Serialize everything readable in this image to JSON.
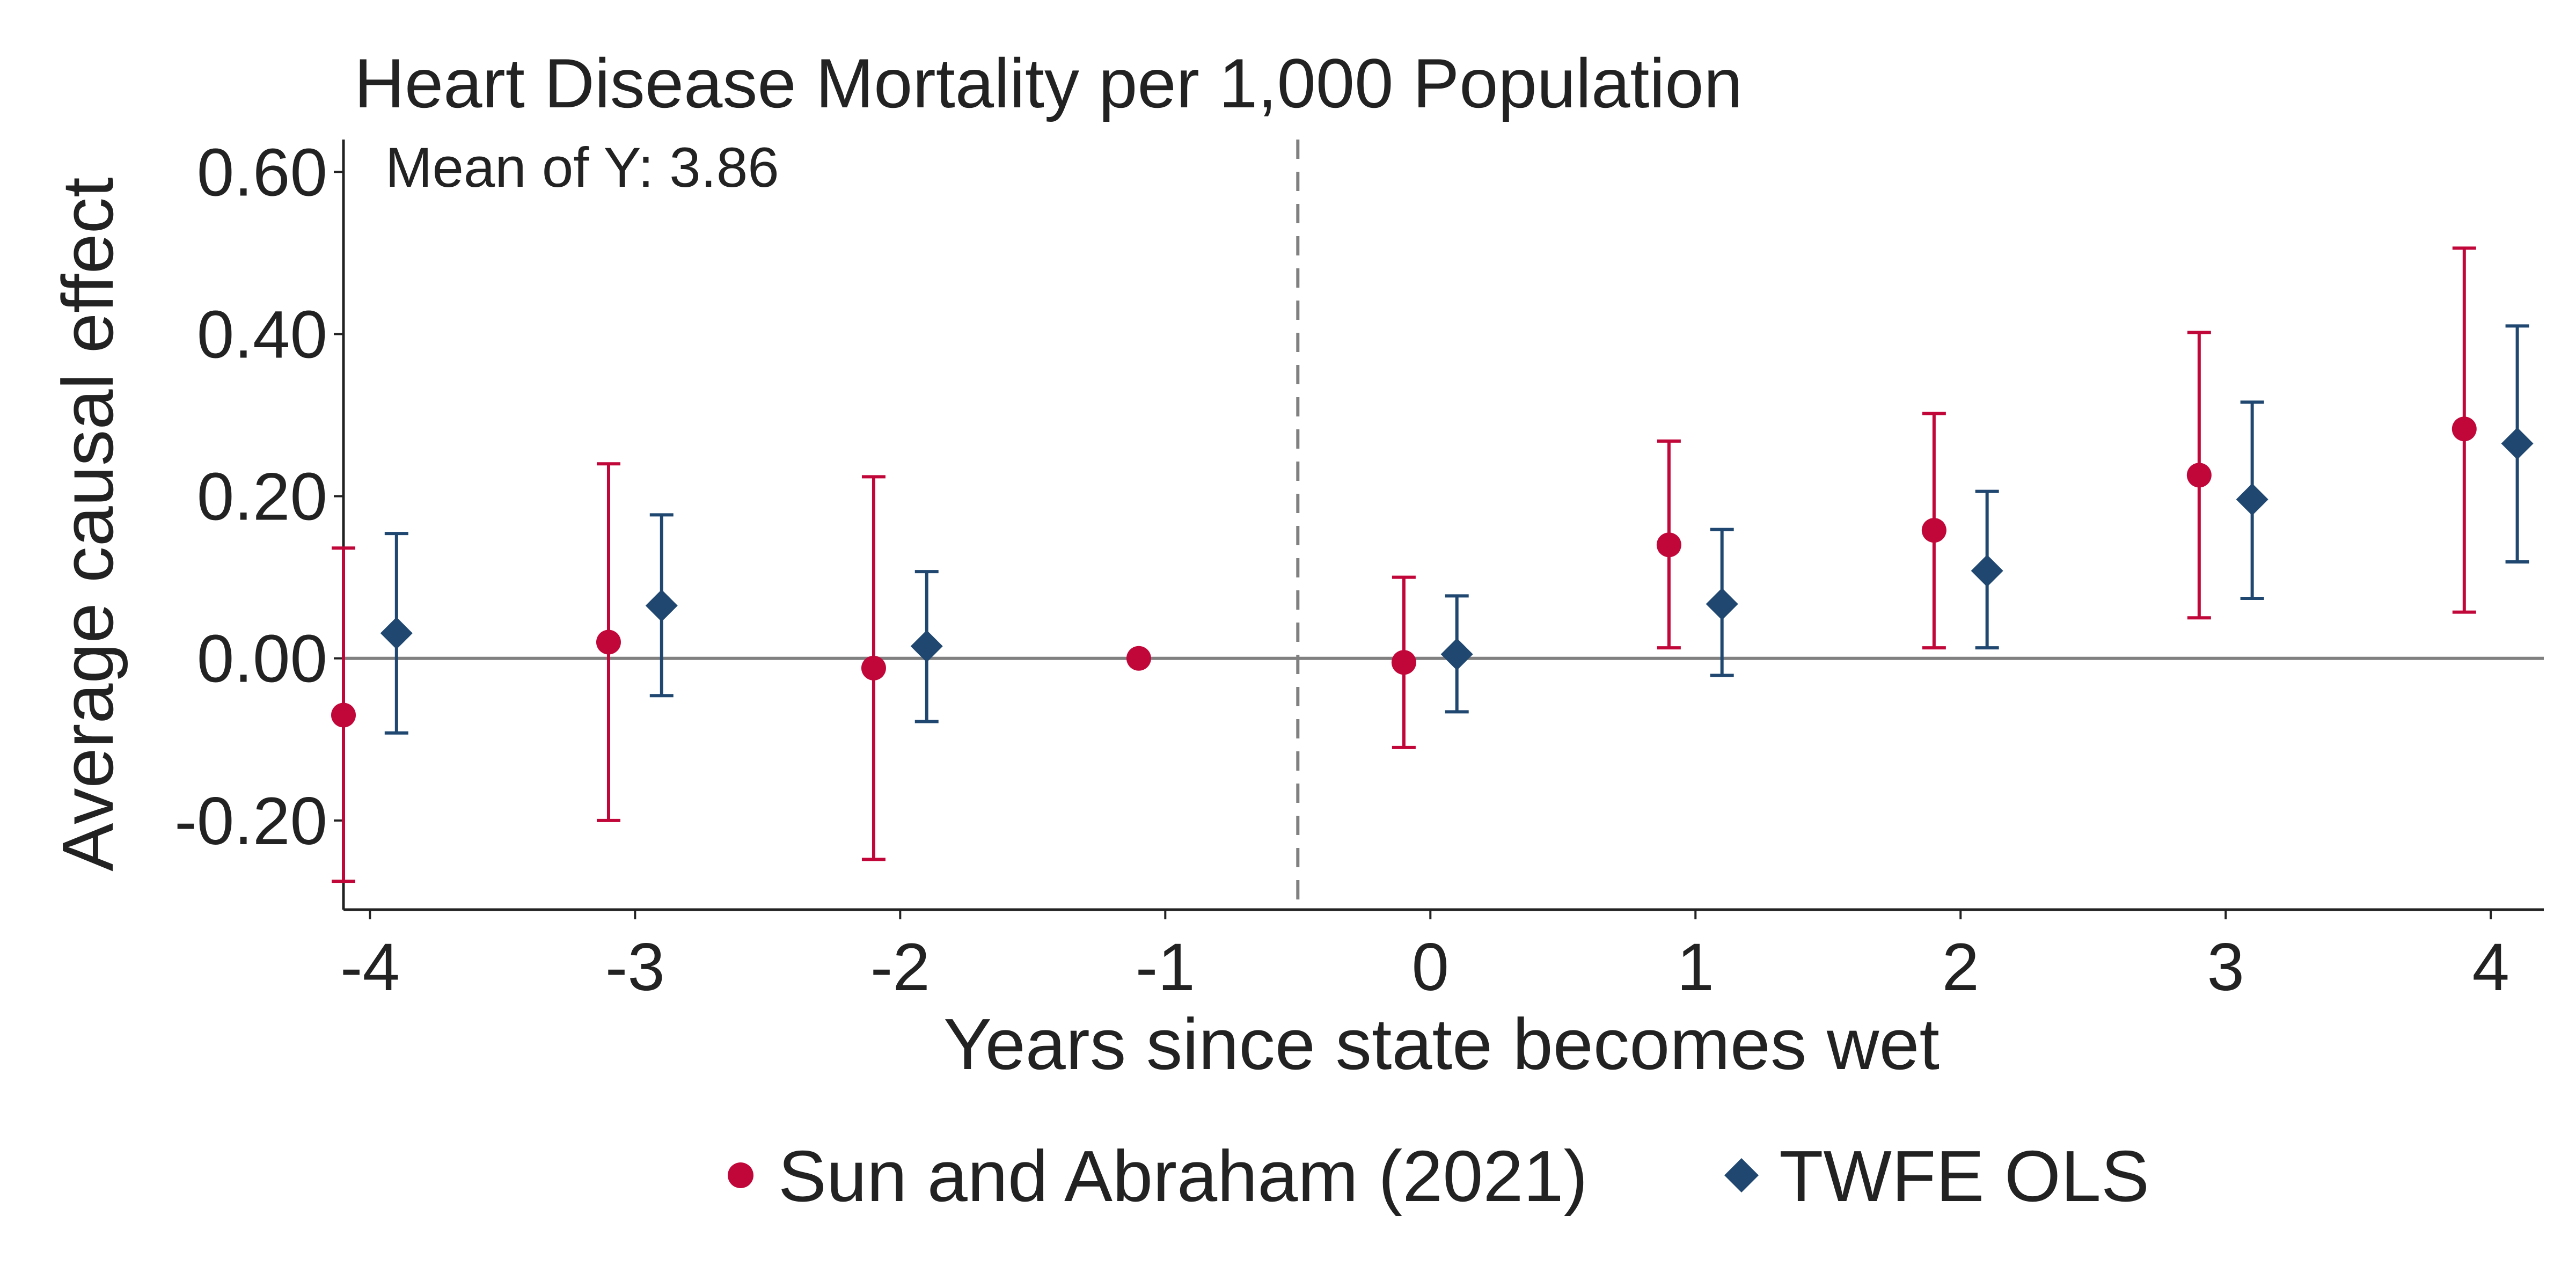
{
  "chart_data": {
    "type": "scatter",
    "title": "Heart Disease Mortality per 1,000 Population",
    "annotation": "Mean of Y: 3.86",
    "xlabel": "Years since state becomes wet",
    "ylabel": "Average causal effect",
    "x_ticks": [
      "-4",
      "-3",
      "-2",
      "-1",
      "0",
      "1",
      "2",
      "3",
      "4"
    ],
    "y_ticks": [
      "0.60",
      "0.40",
      "0.20",
      "0.00",
      "-0.20"
    ],
    "y_tick_values": [
      0.6,
      0.4,
      0.2,
      0.0,
      -0.2
    ],
    "xlim": [
      -4.1,
      4.2
    ],
    "ylim": [
      -0.31,
      0.64
    ],
    "event_line_x": -0.5,
    "zero_line": 0,
    "legend_position": "bottom",
    "series": [
      {
        "name": "Sun and Abraham (2021)",
        "marker": "circle",
        "color": "#C1073A",
        "x": [
          -4,
          -3,
          -2,
          -1,
          0,
          1,
          2,
          3,
          4
        ],
        "y": [
          -0.07,
          0.02,
          -0.012,
          0.0,
          -0.005,
          0.14,
          0.158,
          0.226,
          0.283
        ],
        "ci_low": [
          -0.275,
          -0.2,
          -0.248,
          null,
          -0.11,
          0.013,
          0.013,
          0.05,
          0.057
        ],
        "ci_high": [
          0.136,
          0.24,
          0.224,
          null,
          0.1,
          0.268,
          0.302,
          0.402,
          0.506
        ]
      },
      {
        "name": "TWFE OLS",
        "marker": "diamond",
        "color": "#1F4770",
        "x": [
          -4,
          -3,
          -2,
          0,
          1,
          2,
          3,
          4
        ],
        "y": [
          0.031,
          0.065,
          0.015,
          0.005,
          0.067,
          0.108,
          0.196,
          0.265
        ],
        "ci_low": [
          -0.092,
          -0.046,
          -0.078,
          -0.066,
          -0.021,
          0.013,
          0.074,
          0.119
        ],
        "ci_high": [
          0.154,
          0.177,
          0.107,
          0.077,
          0.159,
          0.206,
          0.316,
          0.41
        ]
      }
    ]
  }
}
